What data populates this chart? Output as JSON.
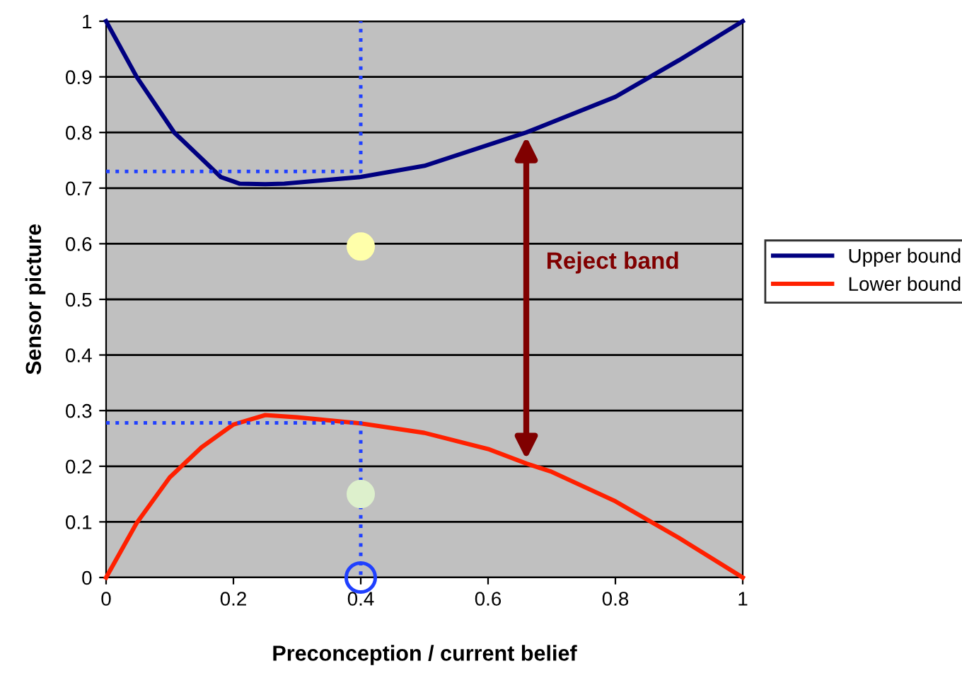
{
  "chart_data": {
    "type": "line",
    "xlabel": "Preconception / current belief",
    "ylabel": "Sensor picture",
    "xlim": [
      0,
      1
    ],
    "ylim": [
      0,
      1
    ],
    "xticks": [
      0,
      0.2,
      0.4,
      0.6,
      0.8,
      1
    ],
    "yticks": [
      0,
      0.1,
      0.2,
      0.3,
      0.4,
      0.5,
      0.6,
      0.7,
      0.8,
      0.9,
      1
    ],
    "grid": "y",
    "legend": "right",
    "annotations": [
      "Reject band"
    ],
    "series": [
      {
        "name": "Upper bound",
        "color": "#000080",
        "x": [
          0,
          0.048,
          0.107,
          0.18,
          0.21,
          0.25,
          0.28,
          0.4,
          0.5,
          0.66,
          0.8,
          0.9,
          1
        ],
        "values": [
          1,
          0.9,
          0.8,
          0.72,
          0.708,
          0.707,
          0.708,
          0.72,
          0.74,
          0.8,
          0.864,
          0.93,
          1
        ]
      },
      {
        "name": "Lower bound",
        "color": "#ff2000",
        "x": [
          0,
          0.048,
          0.1,
          0.15,
          0.2,
          0.25,
          0.3,
          0.4,
          0.5,
          0.6,
          0.66,
          0.7,
          0.8,
          0.9,
          1
        ],
        "values": [
          0,
          0.098,
          0.18,
          0.234,
          0.275,
          0.292,
          0.288,
          0.277,
          0.26,
          0.231,
          0.205,
          0.19,
          0.137,
          0.071,
          0
        ]
      },
      {
        "type": "line",
        "line_style": "dotted",
        "color": "#2040ff",
        "x": [
          0,
          0.4,
          0.4
        ],
        "values": [
          0.73,
          0.73,
          1
        ]
      },
      {
        "type": "line",
        "line_style": "dotted",
        "color": "#2040ff",
        "x": [
          0,
          0.4,
          0.4
        ],
        "values": [
          0.278,
          0.278,
          0
        ]
      },
      {
        "type": "scatter",
        "marker": "circle",
        "color": "#ffffaa",
        "x": [
          0.4
        ],
        "values": [
          0.595
        ]
      },
      {
        "type": "scatter",
        "marker": "circle",
        "color": "#ddf0cc",
        "x": [
          0.4
        ],
        "values": [
          0.15
        ]
      },
      {
        "type": "scatter",
        "marker": "circle",
        "color": "#2040ff",
        "x": [
          0.4
        ],
        "values": [
          0
        ]
      }
    ]
  }
}
